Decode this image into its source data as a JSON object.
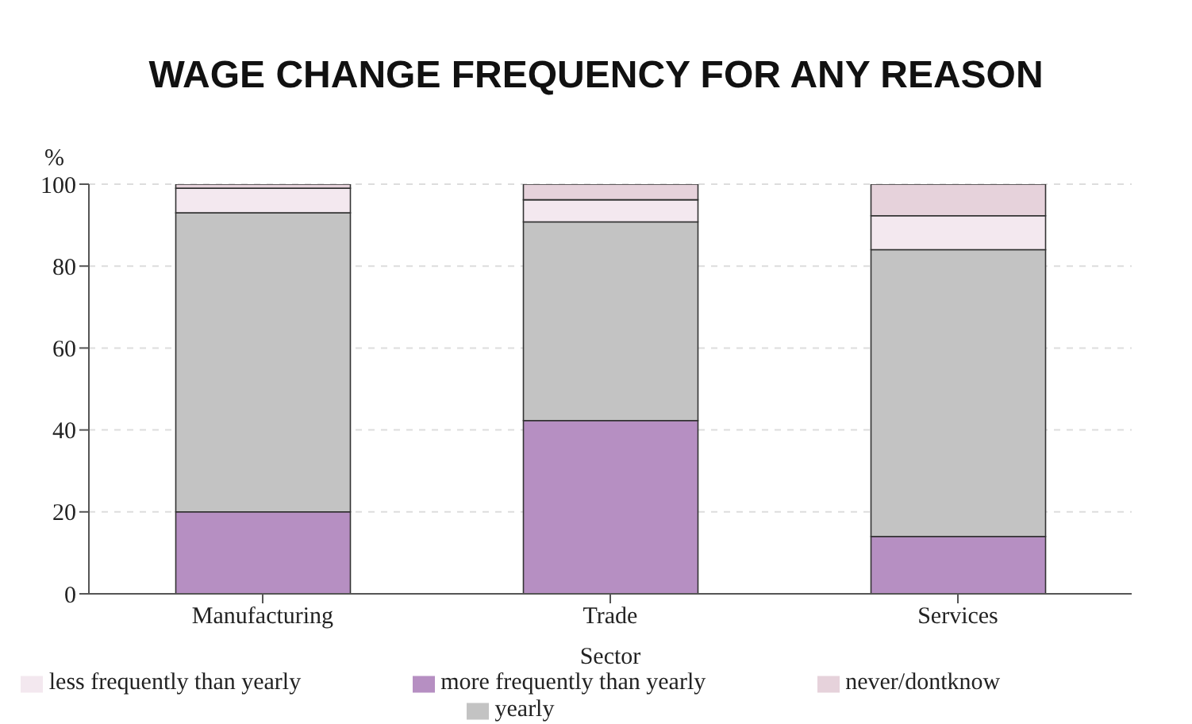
{
  "chart_data": {
    "type": "bar",
    "title": "WAGE CHANGE FREQUENCY FOR ANY REASON",
    "xlabel": "Sector",
    "ylabel": "%",
    "categories": [
      "Manufacturing",
      "Trade",
      "Services"
    ],
    "stacked": true,
    "series": [
      {
        "name": "more frequently than yearly",
        "color": "#b68fc2",
        "values": [
          20,
          42.3,
          14
        ]
      },
      {
        "name": "yearly",
        "color": "#c3c3c3",
        "values": [
          73,
          48.5,
          70
        ]
      },
      {
        "name": "less frequently than yearly",
        "color": "#f3e8ef",
        "values": [
          6,
          5.4,
          8.3
        ]
      },
      {
        "name": "never/dontknow",
        "color": "#e6d2db",
        "values": [
          1,
          3.8,
          7.7
        ]
      }
    ],
    "ylim": [
      0,
      100
    ],
    "yticks": [
      0,
      20,
      40,
      60,
      80,
      100
    ],
    "grid": "y",
    "legend": "bottom"
  }
}
